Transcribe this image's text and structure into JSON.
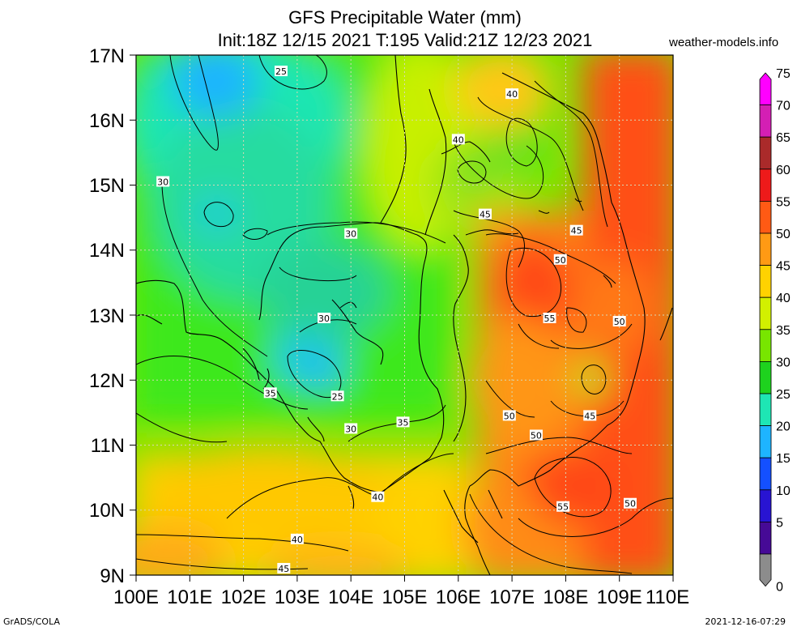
{
  "header": {
    "title": "GFS Precipitable Water (mm)",
    "subtitle": "Init:18Z 12/15 2021 T:195 Valid:21Z 12/23 2021",
    "credit": "weather-models.info"
  },
  "footer": {
    "left": "GrADS/COLA",
    "right": "2021-12-16-07:29"
  },
  "map": {
    "lat_labels": [
      "17N",
      "16N",
      "15N",
      "14N",
      "13N",
      "12N",
      "11N",
      "10N",
      "9N"
    ],
    "lon_labels": [
      "100E",
      "101E",
      "102E",
      "103E",
      "104E",
      "105E",
      "106E",
      "107E",
      "108E",
      "109E",
      "110E"
    ],
    "lat_range": [
      9,
      17
    ],
    "lon_range": [
      100,
      110
    ],
    "contour_labels": [
      {
        "text": "25",
        "lon": 102.7,
        "lat": 16.75
      },
      {
        "text": "40",
        "lon": 107.0,
        "lat": 16.4
      },
      {
        "text": "40",
        "lon": 106.0,
        "lat": 15.7
      },
      {
        "text": "30",
        "lon": 100.5,
        "lat": 15.05
      },
      {
        "text": "45",
        "lon": 106.5,
        "lat": 14.55
      },
      {
        "text": "45",
        "lon": 108.2,
        "lat": 14.3
      },
      {
        "text": "30",
        "lon": 104.0,
        "lat": 14.25
      },
      {
        "text": "50",
        "lon": 107.9,
        "lat": 13.85
      },
      {
        "text": "30",
        "lon": 103.5,
        "lat": 12.95
      },
      {
        "text": "55",
        "lon": 107.7,
        "lat": 12.95
      },
      {
        "text": "50",
        "lon": 109.0,
        "lat": 12.9
      },
      {
        "text": "35",
        "lon": 102.5,
        "lat": 11.8
      },
      {
        "text": "25",
        "lon": 103.75,
        "lat": 11.75
      },
      {
        "text": "45",
        "lon": 108.45,
        "lat": 11.45
      },
      {
        "text": "50",
        "lon": 106.95,
        "lat": 11.45
      },
      {
        "text": "35",
        "lon": 104.97,
        "lat": 11.35
      },
      {
        "text": "30",
        "lon": 104.0,
        "lat": 11.25
      },
      {
        "text": "50",
        "lon": 107.45,
        "lat": 11.15
      },
      {
        "text": "40",
        "lon": 104.5,
        "lat": 10.2
      },
      {
        "text": "55",
        "lon": 107.95,
        "lat": 10.05
      },
      {
        "text": "50",
        "lon": 109.2,
        "lat": 10.1
      },
      {
        "text": "40",
        "lon": 103.0,
        "lat": 9.55
      },
      {
        "text": "45",
        "lon": 102.75,
        "lat": 9.1
      }
    ]
  },
  "colorbar": {
    "labels": [
      "75",
      "70",
      "65",
      "60",
      "55",
      "50",
      "45",
      "40",
      "35",
      "30",
      "25",
      "20",
      "15",
      "10",
      "5",
      "0"
    ],
    "colors": [
      "#ff00ff",
      "#d41fb4",
      "#aa2a2a",
      "#ee1a1a",
      "#ff5a14",
      "#ff9a14",
      "#ffd200",
      "#d2f000",
      "#78e600",
      "#1ed21e",
      "#1ee6b4",
      "#1eb4ff",
      "#1450ff",
      "#2814d2",
      "#460a96",
      "#8c8c8c"
    ]
  }
}
